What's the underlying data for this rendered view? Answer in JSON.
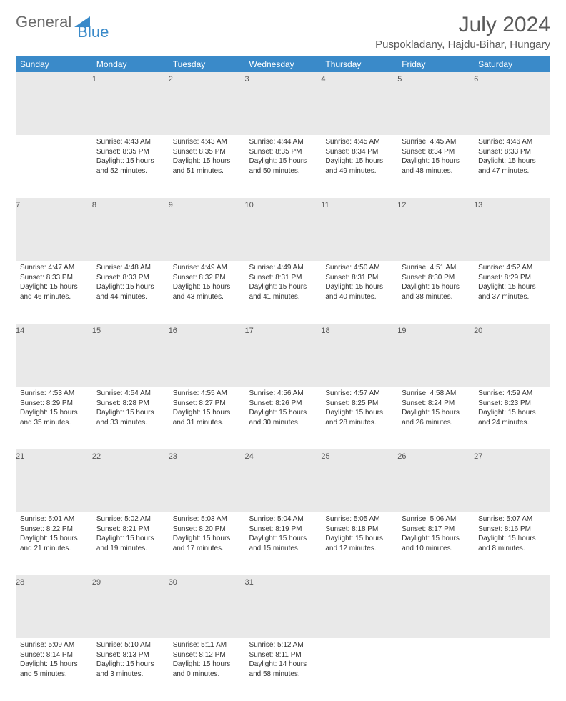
{
  "logo": {
    "part1": "General",
    "part2": "Blue"
  },
  "title": "July 2024",
  "location": "Puspokladany, Hajdu-Bihar, Hungary",
  "colors": {
    "header_bg": "#3a8ac9",
    "header_text": "#ffffff",
    "daynum_bg": "#e9e9e9",
    "border": "#3a8ac9",
    "logo_gray": "#6b6b6b",
    "logo_blue": "#3a8ac9"
  },
  "dayHeaders": [
    "Sunday",
    "Monday",
    "Tuesday",
    "Wednesday",
    "Thursday",
    "Friday",
    "Saturday"
  ],
  "weeks": [
    [
      {
        "num": "",
        "lines": []
      },
      {
        "num": "1",
        "lines": [
          "Sunrise: 4:43 AM",
          "Sunset: 8:35 PM",
          "Daylight: 15 hours and 52 minutes."
        ]
      },
      {
        "num": "2",
        "lines": [
          "Sunrise: 4:43 AM",
          "Sunset: 8:35 PM",
          "Daylight: 15 hours and 51 minutes."
        ]
      },
      {
        "num": "3",
        "lines": [
          "Sunrise: 4:44 AM",
          "Sunset: 8:35 PM",
          "Daylight: 15 hours and 50 minutes."
        ]
      },
      {
        "num": "4",
        "lines": [
          "Sunrise: 4:45 AM",
          "Sunset: 8:34 PM",
          "Daylight: 15 hours and 49 minutes."
        ]
      },
      {
        "num": "5",
        "lines": [
          "Sunrise: 4:45 AM",
          "Sunset: 8:34 PM",
          "Daylight: 15 hours and 48 minutes."
        ]
      },
      {
        "num": "6",
        "lines": [
          "Sunrise: 4:46 AM",
          "Sunset: 8:33 PM",
          "Daylight: 15 hours and 47 minutes."
        ]
      }
    ],
    [
      {
        "num": "7",
        "lines": [
          "Sunrise: 4:47 AM",
          "Sunset: 8:33 PM",
          "Daylight: 15 hours and 46 minutes."
        ]
      },
      {
        "num": "8",
        "lines": [
          "Sunrise: 4:48 AM",
          "Sunset: 8:33 PM",
          "Daylight: 15 hours and 44 minutes."
        ]
      },
      {
        "num": "9",
        "lines": [
          "Sunrise: 4:49 AM",
          "Sunset: 8:32 PM",
          "Daylight: 15 hours and 43 minutes."
        ]
      },
      {
        "num": "10",
        "lines": [
          "Sunrise: 4:49 AM",
          "Sunset: 8:31 PM",
          "Daylight: 15 hours and 41 minutes."
        ]
      },
      {
        "num": "11",
        "lines": [
          "Sunrise: 4:50 AM",
          "Sunset: 8:31 PM",
          "Daylight: 15 hours and 40 minutes."
        ]
      },
      {
        "num": "12",
        "lines": [
          "Sunrise: 4:51 AM",
          "Sunset: 8:30 PM",
          "Daylight: 15 hours and 38 minutes."
        ]
      },
      {
        "num": "13",
        "lines": [
          "Sunrise: 4:52 AM",
          "Sunset: 8:29 PM",
          "Daylight: 15 hours and 37 minutes."
        ]
      }
    ],
    [
      {
        "num": "14",
        "lines": [
          "Sunrise: 4:53 AM",
          "Sunset: 8:29 PM",
          "Daylight: 15 hours and 35 minutes."
        ]
      },
      {
        "num": "15",
        "lines": [
          "Sunrise: 4:54 AM",
          "Sunset: 8:28 PM",
          "Daylight: 15 hours and 33 minutes."
        ]
      },
      {
        "num": "16",
        "lines": [
          "Sunrise: 4:55 AM",
          "Sunset: 8:27 PM",
          "Daylight: 15 hours and 31 minutes."
        ]
      },
      {
        "num": "17",
        "lines": [
          "Sunrise: 4:56 AM",
          "Sunset: 8:26 PM",
          "Daylight: 15 hours and 30 minutes."
        ]
      },
      {
        "num": "18",
        "lines": [
          "Sunrise: 4:57 AM",
          "Sunset: 8:25 PM",
          "Daylight: 15 hours and 28 minutes."
        ]
      },
      {
        "num": "19",
        "lines": [
          "Sunrise: 4:58 AM",
          "Sunset: 8:24 PM",
          "Daylight: 15 hours and 26 minutes."
        ]
      },
      {
        "num": "20",
        "lines": [
          "Sunrise: 4:59 AM",
          "Sunset: 8:23 PM",
          "Daylight: 15 hours and 24 minutes."
        ]
      }
    ],
    [
      {
        "num": "21",
        "lines": [
          "Sunrise: 5:01 AM",
          "Sunset: 8:22 PM",
          "Daylight: 15 hours and 21 minutes."
        ]
      },
      {
        "num": "22",
        "lines": [
          "Sunrise: 5:02 AM",
          "Sunset: 8:21 PM",
          "Daylight: 15 hours and 19 minutes."
        ]
      },
      {
        "num": "23",
        "lines": [
          "Sunrise: 5:03 AM",
          "Sunset: 8:20 PM",
          "Daylight: 15 hours and 17 minutes."
        ]
      },
      {
        "num": "24",
        "lines": [
          "Sunrise: 5:04 AM",
          "Sunset: 8:19 PM",
          "Daylight: 15 hours and 15 minutes."
        ]
      },
      {
        "num": "25",
        "lines": [
          "Sunrise: 5:05 AM",
          "Sunset: 8:18 PM",
          "Daylight: 15 hours and 12 minutes."
        ]
      },
      {
        "num": "26",
        "lines": [
          "Sunrise: 5:06 AM",
          "Sunset: 8:17 PM",
          "Daylight: 15 hours and 10 minutes."
        ]
      },
      {
        "num": "27",
        "lines": [
          "Sunrise: 5:07 AM",
          "Sunset: 8:16 PM",
          "Daylight: 15 hours and 8 minutes."
        ]
      }
    ],
    [
      {
        "num": "28",
        "lines": [
          "Sunrise: 5:09 AM",
          "Sunset: 8:14 PM",
          "Daylight: 15 hours and 5 minutes."
        ]
      },
      {
        "num": "29",
        "lines": [
          "Sunrise: 5:10 AM",
          "Sunset: 8:13 PM",
          "Daylight: 15 hours and 3 minutes."
        ]
      },
      {
        "num": "30",
        "lines": [
          "Sunrise: 5:11 AM",
          "Sunset: 8:12 PM",
          "Daylight: 15 hours and 0 minutes."
        ]
      },
      {
        "num": "31",
        "lines": [
          "Sunrise: 5:12 AM",
          "Sunset: 8:11 PM",
          "Daylight: 14 hours and 58 minutes."
        ]
      },
      {
        "num": "",
        "lines": []
      },
      {
        "num": "",
        "lines": []
      },
      {
        "num": "",
        "lines": []
      }
    ]
  ]
}
